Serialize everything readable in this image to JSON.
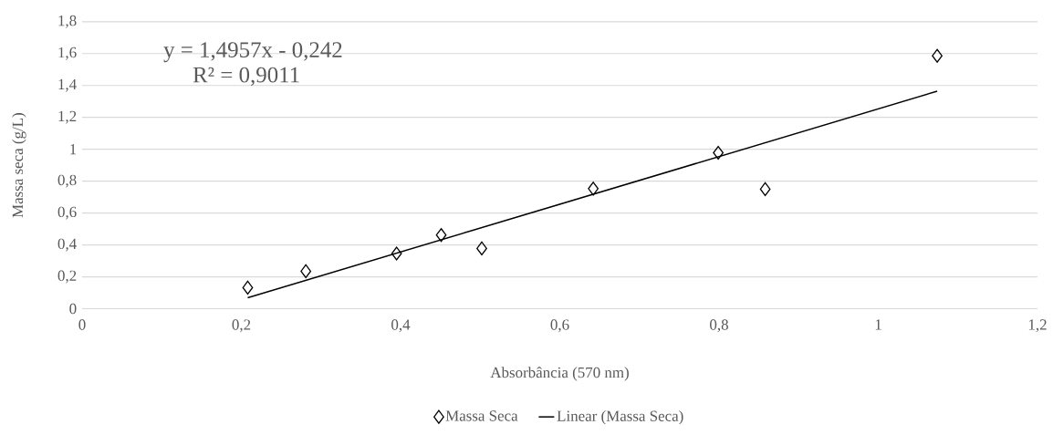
{
  "chart_data": {
    "type": "scatter",
    "xlabel": "Absorbância (570 nm)",
    "ylabel": "Massa seca (g/L)",
    "xlim": [
      0,
      1.2
    ],
    "xticks": [
      {
        "value": 0,
        "label": "0"
      },
      {
        "value": 0.2,
        "label": "0,2"
      },
      {
        "value": 0.4,
        "label": "0,4"
      },
      {
        "value": 0.6,
        "label": "0,6"
      },
      {
        "value": 0.8,
        "label": "0,8"
      },
      {
        "value": 1,
        "label": "1"
      },
      {
        "value": 1.2,
        "label": "1,2"
      }
    ],
    "ylim": [
      0,
      1.8
    ],
    "yticks": [
      {
        "value": 0,
        "label": "0"
      },
      {
        "value": 0.2,
        "label": "0,2"
      },
      {
        "value": 0.4,
        "label": "0,4"
      },
      {
        "value": 0.6,
        "label": "0,6"
      },
      {
        "value": 0.8,
        "label": "0,8"
      },
      {
        "value": 1,
        "label": "1"
      },
      {
        "value": 1.2,
        "label": "1,2"
      },
      {
        "value": 1.4,
        "label": "1,4"
      },
      {
        "value": 1.6,
        "label": "1,6"
      },
      {
        "value": 1.8,
        "label": "1,8"
      }
    ],
    "grid": "y",
    "legend": "bottom",
    "series": [
      {
        "name": "Massa Seca",
        "marker": "diamond",
        "color": "#000000",
        "x": [
          0.208,
          0.281,
          0.395,
          0.451,
          0.502,
          0.642,
          0.799,
          0.858,
          1.074
        ],
        "values": [
          0.132,
          0.235,
          0.346,
          0.462,
          0.378,
          0.753,
          0.978,
          0.75,
          1.586
        ]
      },
      {
        "name": "Linear (Massa Seca)",
        "type": "line",
        "marker": "none",
        "line_style": "solid",
        "color": "#000000",
        "x": [
          0.208,
          1.074
        ],
        "values": [
          0.069,
          1.364
        ]
      }
    ],
    "annotations": [
      "y = 1,4957x - 0,242",
      "R² = 0,9011"
    ]
  }
}
